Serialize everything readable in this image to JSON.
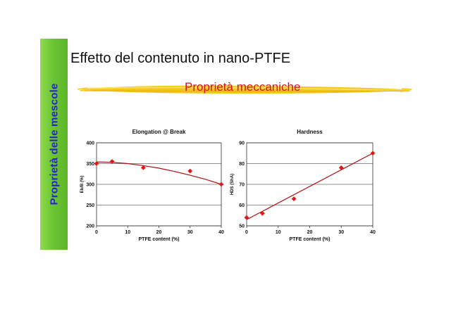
{
  "sidebar": {
    "label": "Proprietà delle mescole"
  },
  "header": {
    "title": "Effetto del contenuto in nano-PTFE",
    "subtitle": "Proprietà meccaniche"
  },
  "colors": {
    "sidebar_green": "#6cc633",
    "sidebar_text": "#2424c8",
    "subtitle_red": "#d0141b",
    "brush_yellow": "#f4c619",
    "marker_red": "#e01818",
    "trend_red": "#b01010"
  },
  "chart_data": [
    {
      "type": "scatter",
      "title": "Elongation @ Break",
      "xlabel": "PTFE content (%)",
      "ylabel": "Eb/B (%)",
      "x": [
        0,
        5,
        15,
        30,
        40
      ],
      "y": [
        350,
        355,
        340,
        332,
        300
      ],
      "trend": {
        "type": "polynomial",
        "x": [
          0,
          5,
          10,
          15,
          20,
          25,
          30,
          35,
          40
        ],
        "y": [
          354,
          353,
          350,
          345,
          339,
          331,
          322,
          312,
          300
        ]
      },
      "xlim": [
        0,
        40
      ],
      "ylim": [
        200,
        400
      ],
      "xticks": [
        0,
        10,
        20,
        30,
        40
      ],
      "yticks": [
        200,
        250,
        300,
        350,
        400
      ],
      "grid": true
    },
    {
      "type": "scatter",
      "title": "Hardness",
      "xlabel": "PTFE content (%)",
      "ylabel": "HDS (ShA)",
      "x": [
        0,
        5,
        15,
        30,
        40
      ],
      "y": [
        54,
        56,
        63,
        78,
        85
      ],
      "trend": {
        "type": "linear",
        "x": [
          0,
          40
        ],
        "y": [
          53,
          85
        ]
      },
      "xlim": [
        0,
        40
      ],
      "ylim": [
        50,
        90
      ],
      "xticks": [
        0,
        10,
        20,
        30,
        40
      ],
      "yticks": [
        50,
        60,
        70,
        80,
        90
      ],
      "grid": true
    }
  ]
}
